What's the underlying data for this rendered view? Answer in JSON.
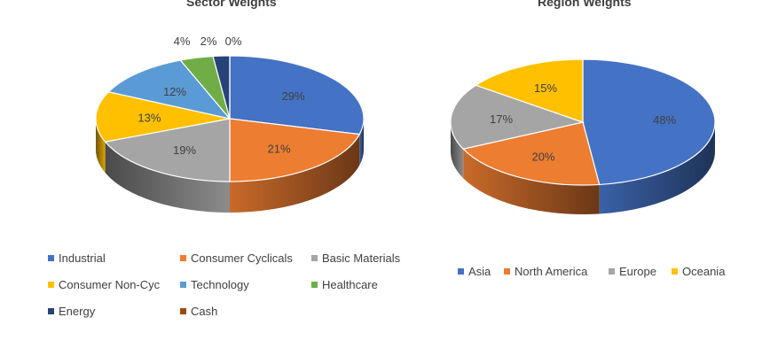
{
  "chart_data": [
    {
      "type": "pie",
      "title": "Sector Weights",
      "labels": [
        "Industrial",
        "Consumer Cyclicals",
        "Basic Materials",
        "Consumer Non-Cyc",
        "Technology",
        "Healthcare",
        "Energy",
        "Cash"
      ],
      "values": [
        29,
        21,
        19,
        13,
        12,
        4,
        2,
        0
      ],
      "data_labels": [
        "29%",
        "21%",
        "19%",
        "13%",
        "12%",
        "4%",
        "2%",
        "0%"
      ],
      "colors": [
        "#4472C4",
        "#ED7D31",
        "#A5A5A5",
        "#FFC000",
        "#5B9BD5",
        "#70AD47",
        "#264478",
        "#9E480E"
      ],
      "legend_position": "bottom"
    },
    {
      "type": "pie",
      "title": "Region Weights",
      "labels": [
        "Asia",
        "North America",
        "Europe",
        "Oceania"
      ],
      "values": [
        48,
        20,
        17,
        15
      ],
      "data_labels": [
        "48%",
        "20%",
        "17%",
        "15%"
      ],
      "colors": [
        "#4472C4",
        "#ED7D31",
        "#A5A5A5",
        "#FFC000"
      ],
      "legend_position": "bottom"
    }
  ]
}
